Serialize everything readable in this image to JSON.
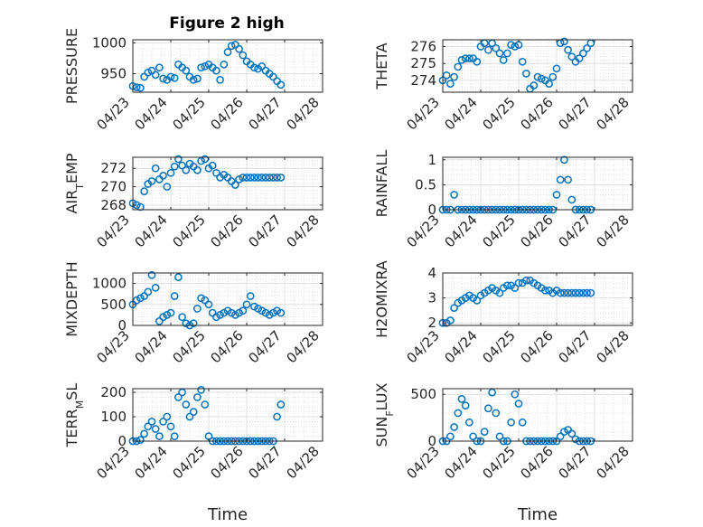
{
  "figure": {
    "title": "Figure 2 high"
  },
  "colors": {
    "marker": "#0072BD",
    "axis": "#262626",
    "grid": "#dadada"
  },
  "chart_data": [
    {
      "type": "scatter",
      "ylabel": "PRESSURE",
      "xlabel": "",
      "xlim": [
        "04/23",
        "04/28"
      ],
      "ylim": [
        920,
        1005
      ],
      "yticks": [
        950,
        1000
      ],
      "xticks": [
        "04/23",
        "04/24",
        "04/25",
        "04/26",
        "04/27",
        "04/28"
      ],
      "x": [
        0.0,
        0.1,
        0.2,
        0.3,
        0.4,
        0.5,
        0.6,
        0.7,
        0.8,
        0.9,
        1.0,
        1.1,
        1.2,
        1.3,
        1.4,
        1.5,
        1.6,
        1.7,
        1.8,
        1.9,
        2.0,
        2.1,
        2.2,
        2.3,
        2.4,
        2.5,
        2.6,
        2.7,
        2.8,
        2.9,
        3.0,
        3.1,
        3.2,
        3.3,
        3.4,
        3.5,
        3.6,
        3.7,
        3.8,
        3.9
      ],
      "y": [
        930,
        928,
        927,
        945,
        952,
        955,
        948,
        960,
        942,
        940,
        945,
        943,
        965,
        960,
        955,
        945,
        940,
        942,
        960,
        962,
        965,
        960,
        955,
        940,
        965,
        985,
        995,
        997,
        990,
        980,
        970,
        965,
        960,
        958,
        962,
        955,
        950,
        945,
        938,
        932
      ]
    },
    {
      "type": "scatter",
      "ylabel": "THETA",
      "xlabel": "",
      "xlim": [
        "04/23",
        "04/28"
      ],
      "ylim": [
        273.3,
        276.4
      ],
      "yticks": [
        274,
        275,
        276
      ],
      "xticks": [
        "04/23",
        "04/24",
        "04/25",
        "04/26",
        "04/27",
        "04/28"
      ],
      "x": [
        0.0,
        0.1,
        0.2,
        0.3,
        0.4,
        0.5,
        0.6,
        0.7,
        0.8,
        0.9,
        1.0,
        1.1,
        1.2,
        1.3,
        1.4,
        1.5,
        1.6,
        1.7,
        1.8,
        1.9,
        2.0,
        2.1,
        2.2,
        2.3,
        2.4,
        2.5,
        2.6,
        2.7,
        2.8,
        2.9,
        3.0,
        3.1,
        3.2,
        3.3,
        3.4,
        3.5,
        3.6,
        3.7,
        3.8,
        3.9
      ],
      "y": [
        274.0,
        274.3,
        273.8,
        274.2,
        274.8,
        275.2,
        275.3,
        275.3,
        275.3,
        275.1,
        276.0,
        276.2,
        275.8,
        276.2,
        275.9,
        275.6,
        275.2,
        275.6,
        276.1,
        276.0,
        276.1,
        275.1,
        274.4,
        273.5,
        273.7,
        274.2,
        274.1,
        274.0,
        273.8,
        274.2,
        274.7,
        276.2,
        276.3,
        275.8,
        275.4,
        275.1,
        275.3,
        275.6,
        275.9,
        276.2
      ]
    },
    {
      "type": "scatter",
      "ylabel": "AIR_TEMP",
      "xlabel": "",
      "xlim": [
        "04/23",
        "04/28"
      ],
      "ylim": [
        267.5,
        273.2
      ],
      "yticks": [
        268,
        270,
        272
      ],
      "xticks": [
        "04/23",
        "04/24",
        "04/25",
        "04/26",
        "04/27",
        "04/28"
      ],
      "x": [
        0.0,
        0.1,
        0.2,
        0.3,
        0.4,
        0.5,
        0.6,
        0.7,
        0.8,
        0.9,
        1.0,
        1.1,
        1.2,
        1.3,
        1.4,
        1.5,
        1.6,
        1.7,
        1.8,
        1.9,
        2.0,
        2.1,
        2.2,
        2.3,
        2.4,
        2.5,
        2.6,
        2.7,
        2.8,
        2.9,
        3.0,
        3.1,
        3.2,
        3.3,
        3.4,
        3.5,
        3.6,
        3.7,
        3.8,
        3.9
      ],
      "y": [
        268.2,
        268.0,
        267.8,
        269.5,
        270.3,
        270.6,
        272.0,
        270.8,
        271.2,
        270.0,
        271.5,
        272.2,
        273.0,
        272.3,
        271.8,
        272.5,
        272.2,
        271.8,
        272.8,
        273.0,
        272.0,
        272.3,
        271.5,
        271.0,
        271.3,
        271.0,
        270.6,
        270.2,
        270.8,
        271.0,
        271.0,
        271.0,
        271.0,
        271.0,
        271.0,
        271.0,
        271.0,
        271.0,
        271.0,
        271.0
      ]
    },
    {
      "type": "scatter",
      "ylabel": "RAINFALL",
      "xlabel": "",
      "xlim": [
        "04/23",
        "04/28"
      ],
      "ylim": [
        0,
        1.05
      ],
      "yticks": [
        0,
        0.5,
        1
      ],
      "xticks": [
        "04/23",
        "04/24",
        "04/25",
        "04/26",
        "04/27",
        "04/28"
      ],
      "x": [
        0.0,
        0.1,
        0.2,
        0.3,
        0.4,
        0.5,
        0.6,
        0.7,
        0.8,
        0.9,
        1.0,
        1.1,
        1.2,
        1.3,
        1.4,
        1.5,
        1.6,
        1.7,
        1.8,
        1.9,
        2.0,
        2.1,
        2.2,
        2.3,
        2.4,
        2.5,
        2.6,
        2.7,
        2.8,
        2.9,
        3.0,
        3.1,
        3.2,
        3.3,
        3.4,
        3.5,
        3.6,
        3.7,
        3.8,
        3.9
      ],
      "y": [
        0,
        0,
        0,
        0.3,
        0,
        0,
        0,
        0,
        0,
        0,
        0,
        0,
        0,
        0,
        0,
        0,
        0,
        0,
        0,
        0,
        0,
        0,
        0,
        0,
        0,
        0,
        0,
        0,
        0,
        0,
        0.3,
        0.6,
        1.0,
        0.6,
        0.2,
        0,
        0,
        0,
        0,
        0
      ]
    },
    {
      "type": "scatter",
      "ylabel": "MIXDEPTH",
      "xlabel": "",
      "xlim": [
        "04/23",
        "04/28"
      ],
      "ylim": [
        0,
        1250
      ],
      "yticks": [
        0,
        500,
        1000
      ],
      "xticks": [
        "04/23",
        "04/24",
        "04/25",
        "04/26",
        "04/27",
        "04/28"
      ],
      "x": [
        0.0,
        0.1,
        0.2,
        0.3,
        0.4,
        0.5,
        0.6,
        0.7,
        0.8,
        0.9,
        1.0,
        1.1,
        1.2,
        1.3,
        1.4,
        1.5,
        1.6,
        1.7,
        1.8,
        1.9,
        2.0,
        2.1,
        2.2,
        2.3,
        2.4,
        2.5,
        2.6,
        2.7,
        2.8,
        2.9,
        3.0,
        3.1,
        3.2,
        3.3,
        3.4,
        3.5,
        3.6,
        3.7,
        3.8,
        3.9
      ],
      "y": [
        500,
        600,
        650,
        700,
        800,
        1200,
        900,
        100,
        200,
        250,
        300,
        700,
        1150,
        200,
        50,
        0,
        50,
        400,
        650,
        600,
        500,
        300,
        200,
        250,
        300,
        350,
        300,
        250,
        300,
        350,
        500,
        700,
        450,
        400,
        350,
        300,
        250,
        300,
        350,
        300
      ]
    },
    {
      "type": "scatter",
      "ylabel": "H2OMIXRA",
      "xlabel": "",
      "xlim": [
        "04/23",
        "04/28"
      ],
      "ylim": [
        1.9,
        4
      ],
      "yticks": [
        2,
        3,
        4
      ],
      "xticks": [
        "04/23",
        "04/24",
        "04/25",
        "04/26",
        "04/27",
        "04/28"
      ],
      "x": [
        0.0,
        0.1,
        0.2,
        0.3,
        0.4,
        0.5,
        0.6,
        0.7,
        0.8,
        0.9,
        1.0,
        1.1,
        1.2,
        1.3,
        1.4,
        1.5,
        1.6,
        1.7,
        1.8,
        1.9,
        2.0,
        2.1,
        2.2,
        2.3,
        2.4,
        2.5,
        2.6,
        2.7,
        2.8,
        2.9,
        3.0,
        3.1,
        3.2,
        3.3,
        3.4,
        3.5,
        3.6,
        3.7,
        3.8,
        3.9
      ],
      "y": [
        2.0,
        2.0,
        2.1,
        2.6,
        2.8,
        2.9,
        3.0,
        3.1,
        3.0,
        2.9,
        3.1,
        3.2,
        3.3,
        3.4,
        3.3,
        3.2,
        3.4,
        3.5,
        3.5,
        3.4,
        3.6,
        3.6,
        3.7,
        3.7,
        3.6,
        3.5,
        3.4,
        3.3,
        3.3,
        3.2,
        3.3,
        3.2,
        3.2,
        3.2,
        3.2,
        3.2,
        3.2,
        3.2,
        3.2,
        3.2
      ]
    },
    {
      "type": "scatter",
      "ylabel": "TERR_MSL",
      "xlabel": "Time",
      "xlim": [
        "04/23",
        "04/28"
      ],
      "ylim": [
        0,
        215
      ],
      "yticks": [
        0,
        100,
        200
      ],
      "xticks": [
        "04/23",
        "04/24",
        "04/25",
        "04/26",
        "04/27",
        "04/28"
      ],
      "x": [
        0.0,
        0.1,
        0.2,
        0.3,
        0.4,
        0.5,
        0.6,
        0.7,
        0.8,
        0.9,
        1.0,
        1.1,
        1.2,
        1.3,
        1.4,
        1.5,
        1.6,
        1.7,
        1.8,
        1.9,
        2.0,
        2.1,
        2.2,
        2.3,
        2.4,
        2.5,
        2.6,
        2.7,
        2.8,
        2.9,
        3.0,
        3.1,
        3.2,
        3.3,
        3.4,
        3.5,
        3.6,
        3.7,
        3.8,
        3.9
      ],
      "y": [
        0,
        0,
        5,
        30,
        60,
        80,
        50,
        20,
        80,
        100,
        60,
        20,
        180,
        200,
        150,
        100,
        120,
        180,
        210,
        150,
        20,
        0,
        0,
        0,
        0,
        0,
        0,
        0,
        0,
        0,
        0,
        0,
        0,
        0,
        0,
        0,
        0,
        0,
        100,
        150
      ]
    },
    {
      "type": "scatter",
      "ylabel": "SUN_FLUX",
      "xlabel": "Time",
      "xlim": [
        "04/23",
        "04/28"
      ],
      "ylim": [
        0,
        560
      ],
      "yticks": [
        0,
        500
      ],
      "xticks": [
        "04/23",
        "04/24",
        "04/25",
        "04/26",
        "04/27",
        "04/28"
      ],
      "x": [
        0.0,
        0.1,
        0.2,
        0.3,
        0.4,
        0.5,
        0.6,
        0.7,
        0.8,
        0.9,
        1.0,
        1.1,
        1.2,
        1.3,
        1.4,
        1.5,
        1.6,
        1.7,
        1.8,
        1.9,
        2.0,
        2.1,
        2.2,
        2.3,
        2.4,
        2.5,
        2.6,
        2.7,
        2.8,
        2.9,
        3.0,
        3.1,
        3.2,
        3.3,
        3.4,
        3.5,
        3.6,
        3.7,
        3.8,
        3.9
      ],
      "y": [
        0,
        0,
        50,
        150,
        300,
        450,
        380,
        200,
        50,
        0,
        0,
        100,
        350,
        520,
        300,
        50,
        0,
        0,
        200,
        500,
        400,
        200,
        0,
        0,
        0,
        0,
        0,
        0,
        0,
        0,
        0,
        50,
        100,
        120,
        80,
        20,
        0,
        0,
        0,
        0
      ]
    }
  ]
}
